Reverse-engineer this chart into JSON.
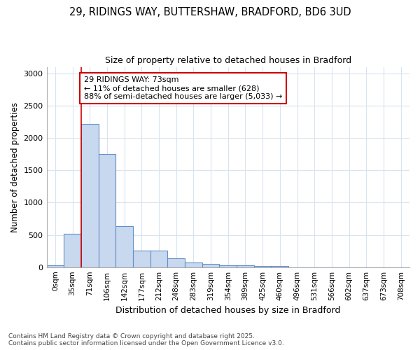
{
  "title_line1": "29, RIDINGS WAY, BUTTERSHAW, BRADFORD, BD6 3UD",
  "title_line2": "Size of property relative to detached houses in Bradford",
  "xlabel": "Distribution of detached houses by size in Bradford",
  "ylabel": "Number of detached properties",
  "bar_labels": [
    "0sqm",
    "35sqm",
    "71sqm",
    "106sqm",
    "142sqm",
    "177sqm",
    "212sqm",
    "248sqm",
    "283sqm",
    "319sqm",
    "354sqm",
    "389sqm",
    "425sqm",
    "460sqm",
    "496sqm",
    "531sqm",
    "566sqm",
    "602sqm",
    "637sqm",
    "673sqm",
    "708sqm"
  ],
  "bar_values": [
    30,
    520,
    2220,
    1750,
    635,
    260,
    260,
    140,
    75,
    55,
    30,
    25,
    20,
    15,
    0,
    0,
    0,
    0,
    0,
    0,
    0
  ],
  "bar_color": "#c8d8ef",
  "bar_edge_color": "#6090c8",
  "vline_color": "#cc0000",
  "annotation_text": "29 RIDINGS WAY: 73sqm\n← 11% of detached houses are smaller (628)\n88% of semi-detached houses are larger (5,033) →",
  "annotation_box_edgecolor": "#cc0000",
  "ylim": [
    0,
    3100
  ],
  "yticks": [
    0,
    500,
    1000,
    1500,
    2000,
    2500,
    3000
  ],
  "background_color": "#ffffff",
  "grid_color": "#d8e4f0",
  "footer_line1": "Contains HM Land Registry data © Crown copyright and database right 2025.",
  "footer_line2": "Contains public sector information licensed under the Open Government Licence v3.0."
}
